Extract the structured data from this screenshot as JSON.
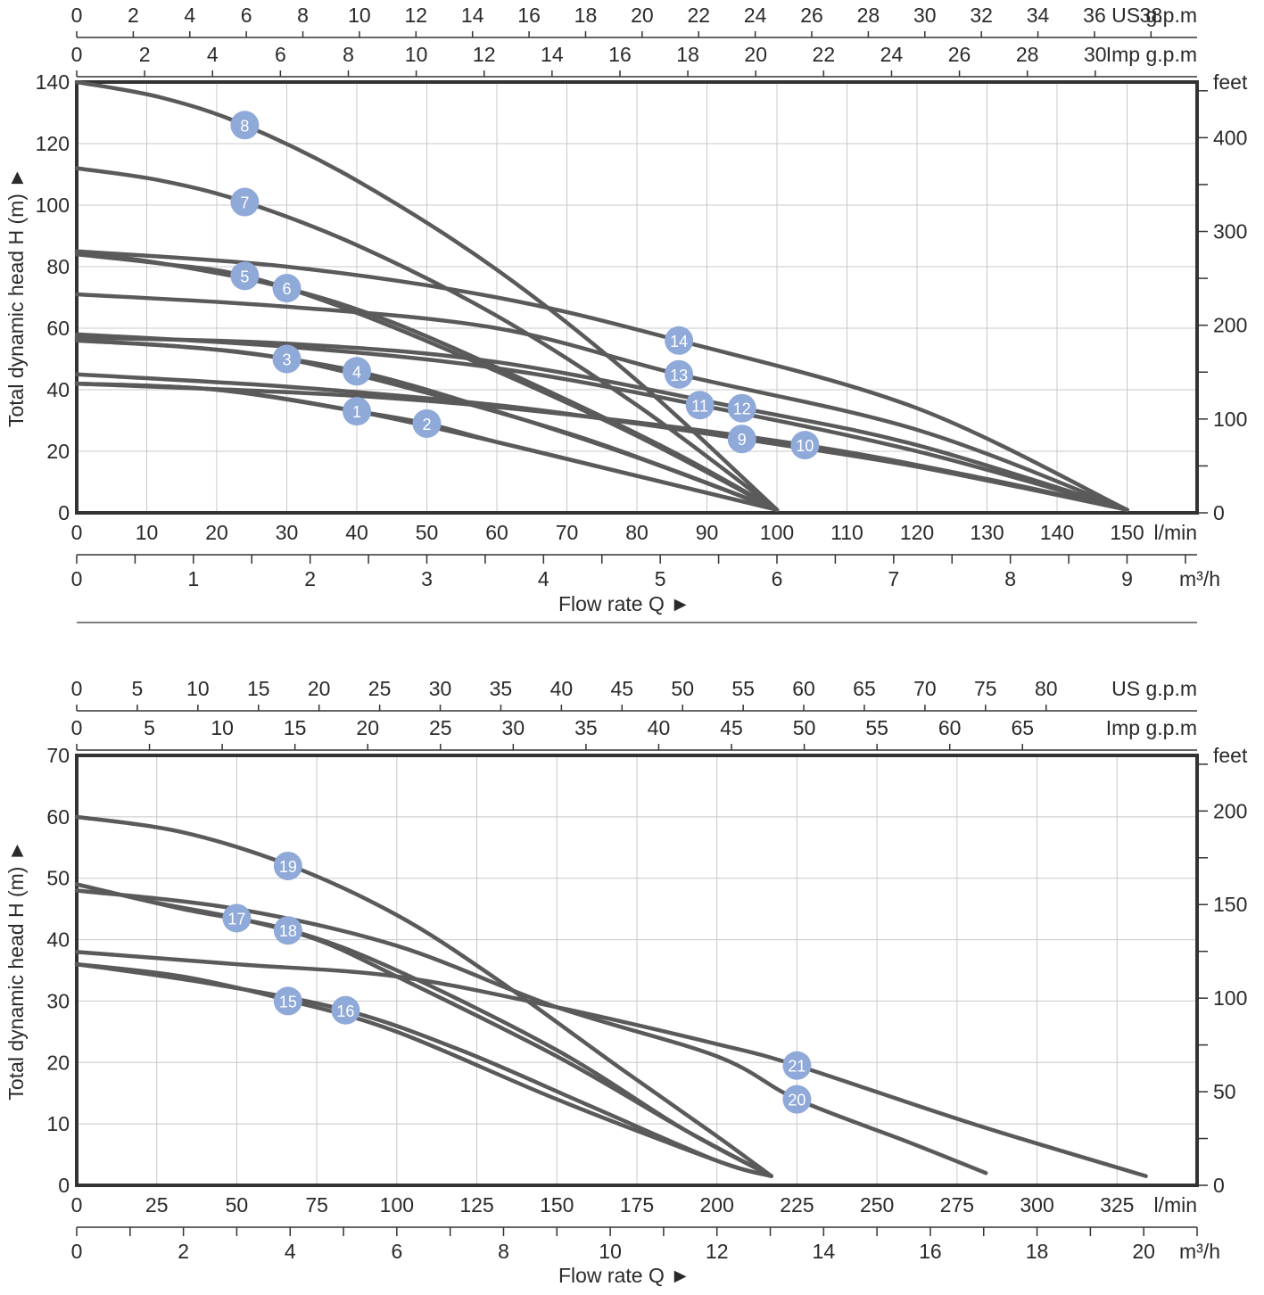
{
  "chart_data": [
    {
      "type": "line",
      "scales": {
        "us_gpm": {
          "label": "US g.p.m",
          "ticks": [
            "0",
            "2",
            "4",
            "6",
            "8",
            "10",
            "12",
            "14",
            "16",
            "18",
            "20",
            "22",
            "24",
            "26",
            "28",
            "30",
            "32",
            "34",
            "36",
            "38"
          ],
          "max": 39.63
        },
        "imp_gpm": {
          "label": "Imp g.p.m",
          "ticks": [
            "0",
            "2",
            "4",
            "6",
            "8",
            "10",
            "12",
            "14",
            "16",
            "18",
            "20",
            "22",
            "24",
            "26",
            "28",
            "30"
          ],
          "max": 33.0
        },
        "lmin": {
          "label": "l/min",
          "ticks": [
            "0",
            "10",
            "20",
            "30",
            "40",
            "50",
            "60",
            "70",
            "80",
            "90",
            "100",
            "110",
            "120",
            "130",
            "140",
            "150"
          ],
          "max": 160
        },
        "m3h": {
          "label": "m³/h",
          "ticks": [
            "0",
            "1",
            "2",
            "3",
            "4",
            "5",
            "6",
            "7",
            "8",
            "9"
          ],
          "max": 9.6
        },
        "feet_ticks": [
          "0",
          "100",
          "200",
          "300",
          "400"
        ],
        "feet_label": "feet",
        "feet_max": 459.3
      },
      "ylabel": "Total dynamic head H (m) ►",
      "xlabel": "Flow rate Q ►",
      "ylim": [
        0,
        140
      ],
      "yticks": [
        "0",
        "20",
        "40",
        "60",
        "80",
        "100",
        "120",
        "140"
      ],
      "xlim": [
        0,
        160
      ],
      "grid": true,
      "series": [
        {
          "name": "1",
          "x": [
            0,
            20,
            40,
            60,
            80,
            100
          ],
          "y": [
            42,
            40,
            33,
            23,
            12,
            1
          ],
          "marker": {
            "x": 40,
            "y": 33
          }
        },
        {
          "name": "2",
          "x": [
            0,
            20,
            40,
            50,
            60,
            80,
            100
          ],
          "y": [
            42,
            40,
            33,
            29,
            23,
            12,
            1
          ],
          "marker": {
            "x": 50,
            "y": 29
          }
        },
        {
          "name": "3",
          "x": [
            0,
            15,
            30,
            50,
            70,
            85,
            100
          ],
          "y": [
            56,
            54,
            50,
            39,
            26,
            14,
            1
          ],
          "marker": {
            "x": 30,
            "y": 50
          }
        },
        {
          "name": "4",
          "x": [
            0,
            20,
            40,
            60,
            80,
            100
          ],
          "y": [
            56,
            53,
            46,
            33,
            18,
            1
          ],
          "marker": {
            "x": 40,
            "y": 46
          }
        },
        {
          "name": "5",
          "x": [
            0,
            12,
            24,
            40,
            60,
            80,
            100
          ],
          "y": [
            84,
            81,
            77,
            65,
            46,
            25,
            1
          ],
          "marker": {
            "x": 24,
            "y": 77
          }
        },
        {
          "name": "6",
          "x": [
            0,
            15,
            30,
            45,
            65,
            85,
            100
          ],
          "y": [
            85,
            80,
            73,
            62,
            42,
            20,
            1
          ],
          "marker": {
            "x": 30,
            "y": 73
          }
        },
        {
          "name": "7",
          "x": [
            0,
            12,
            24,
            40,
            60,
            80,
            100
          ],
          "y": [
            112,
            108,
            101,
            87,
            64,
            35,
            1
          ],
          "marker": {
            "x": 24,
            "y": 101
          }
        },
        {
          "name": "8",
          "x": [
            0,
            12,
            24,
            40,
            60,
            80,
            100
          ],
          "y": [
            140,
            135,
            126,
            108,
            79,
            43,
            1
          ],
          "marker": {
            "x": 24,
            "y": 126
          }
        },
        {
          "name": "9",
          "x": [
            0,
            30,
            60,
            80,
            95,
            120,
            150
          ],
          "y": [
            45,
            41,
            35,
            29,
            24,
            15,
            1
          ],
          "marker": {
            "x": 95,
            "y": 24
          }
        },
        {
          "name": "10",
          "x": [
            0,
            40,
            70,
            104,
            130,
            150
          ],
          "y": [
            42,
            38,
            32,
            22,
            11,
            1
          ],
          "marker": {
            "x": 104,
            "y": 22
          }
        },
        {
          "name": "11",
          "x": [
            0,
            30,
            60,
            89,
            120,
            150
          ],
          "y": [
            58,
            54,
            47,
            35,
            20,
            1
          ],
          "marker": {
            "x": 89,
            "y": 35
          }
        },
        {
          "name": "12",
          "x": [
            0,
            30,
            60,
            95,
            120,
            150
          ],
          "y": [
            57,
            55,
            49,
            34,
            22,
            1
          ],
          "marker": {
            "x": 95,
            "y": 34
          }
        },
        {
          "name": "13",
          "x": [
            0,
            30,
            60,
            86,
            120,
            150
          ],
          "y": [
            71,
            67,
            60,
            45,
            27,
            1
          ],
          "marker": {
            "x": 86,
            "y": 45
          }
        },
        {
          "name": "14",
          "x": [
            0,
            30,
            60,
            86,
            120,
            150
          ],
          "y": [
            85,
            80,
            70,
            56,
            34,
            1
          ],
          "marker": {
            "x": 86,
            "y": 56
          }
        }
      ]
    },
    {
      "type": "line",
      "scales": {
        "us_gpm": {
          "label": "US g.p.m",
          "ticks": [
            "0",
            "5",
            "10",
            "15",
            "20",
            "25",
            "30",
            "35",
            "40",
            "45",
            "50",
            "55",
            "60",
            "65",
            "70",
            "75",
            "80"
          ],
          "max": 92.46
        },
        "imp_gpm": {
          "label": "Imp g.p.m",
          "ticks": [
            "0",
            "5",
            "10",
            "15",
            "20",
            "25",
            "30",
            "35",
            "40",
            "45",
            "50",
            "55",
            "60",
            "65"
          ],
          "max": 77.0
        },
        "lmin": {
          "label": "l/min",
          "ticks": [
            "0",
            "25",
            "50",
            "75",
            "100",
            "125",
            "150",
            "175",
            "200",
            "225",
            "250",
            "275",
            "300",
            "325"
          ],
          "max": 350
        },
        "m3h": {
          "label": "m³/h",
          "ticks": [
            "0",
            "2",
            "4",
            "6",
            "8",
            "10",
            "12",
            "14",
            "16",
            "18",
            "20"
          ],
          "max": 21
        },
        "feet_ticks": [
          "0",
          "50",
          "100",
          "150",
          "200"
        ],
        "feet_label": "feet",
        "feet_max": 229.7
      },
      "ylabel": "Total dynamic head H (m) ►",
      "xlabel": "Flow rate Q ►",
      "ylim": [
        0,
        70
      ],
      "yticks": [
        "0",
        "10",
        "20",
        "30",
        "40",
        "50",
        "60",
        "70"
      ],
      "xlim": [
        0,
        350
      ],
      "grid": true,
      "series": [
        {
          "name": "15",
          "x": [
            0,
            33,
            67,
            100,
            150,
            200,
            217
          ],
          "y": [
            36,
            34,
            30,
            25,
            14,
            4,
            1.5
          ],
          "marker": {
            "x": 66,
            "y": 30
          }
        },
        {
          "name": "16",
          "x": [
            0,
            40,
            84,
            120,
            160,
            200,
            217
          ],
          "y": [
            36,
            33,
            28.5,
            22,
            13,
            4,
            1.5
          ],
          "marker": {
            "x": 84,
            "y": 28.5
          }
        },
        {
          "name": "17",
          "x": [
            0,
            25,
            50,
            75,
            100,
            150,
            190,
            217
          ],
          "y": [
            49,
            46,
            43.5,
            40,
            34,
            21,
            9,
            1.5
          ],
          "marker": {
            "x": 50,
            "y": 43.5
          }
        },
        {
          "name": "18",
          "x": [
            0,
            33,
            67,
            100,
            150,
            190,
            217
          ],
          "y": [
            49,
            45,
            41.5,
            35,
            22,
            9,
            1.5
          ],
          "marker": {
            "x": 66,
            "y": 41.5
          }
        },
        {
          "name": "19",
          "x": [
            0,
            33,
            67,
            100,
            130,
            170,
            200,
            217
          ],
          "y": [
            60,
            57.5,
            52,
            44,
            34,
            19,
            8,
            1.5
          ],
          "marker": {
            "x": 66,
            "y": 52
          }
        },
        {
          "name": "20",
          "x": [
            0,
            50,
            100,
            150,
            200,
            225,
            260,
            284
          ],
          "y": [
            48,
            45,
            39,
            29,
            21,
            14,
            7,
            2
          ],
          "marker": {
            "x": 225,
            "y": 14
          }
        },
        {
          "name": "21",
          "x": [
            0,
            50,
            100,
            150,
            200,
            225,
            280,
            334
          ],
          "y": [
            38,
            36,
            34,
            29,
            23,
            19.5,
            10,
            1.5
          ],
          "marker": {
            "x": 225,
            "y": 19.5
          }
        }
      ]
    }
  ]
}
